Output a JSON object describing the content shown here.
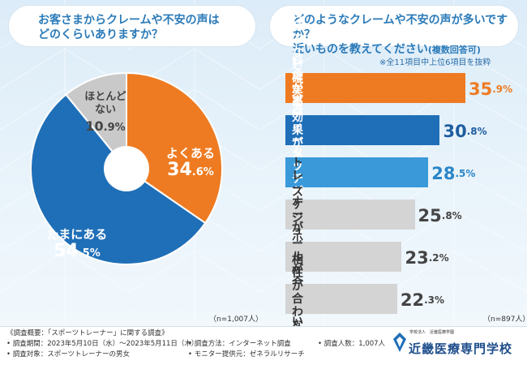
{
  "header": {
    "q1_line1": "お客さまからクレームや不安の声は",
    "q1_line2": "どのくらいありますか？",
    "q2_line1": "どのようなクレームや不安の声が多いですか？",
    "q2_line2": "近いものを教えてください",
    "q2_suffix": "(複数回答可)",
    "note": "※全11項目中上位6項目を抜粋"
  },
  "sample": {
    "left": "（n=1,007人）",
    "right": "（n=897人）"
  },
  "chart_data": [
    {
      "type": "pie",
      "slices": [
        {
          "label": "よくある",
          "value_int": "34",
          "value_dec": ".6%",
          "value": 34.6,
          "color": "#ee7b22",
          "text_color": "#ffffff"
        },
        {
          "label": "たまにある",
          "value_int": "54",
          "value_dec": ".5%",
          "value": 54.5,
          "color": "#1f6fb8",
          "text_color": "#ffffff"
        },
        {
          "label": "ほとんど\nない",
          "value_int": "10",
          "value_dec": ".9%",
          "value": 10.9,
          "color": "#c9c9c9",
          "text_color": "#444444"
        }
      ]
    },
    {
      "type": "bar",
      "orientation": "horizontal",
      "xlim": [
        0,
        35.9
      ],
      "bars": [
        {
          "label": "料金が高い",
          "value": 35.9,
          "value_int": "35",
          "value_dec": ".9%",
          "color": "#ee7b22",
          "text_color": "#ffffff",
          "value_color": "#ee7b22"
        },
        {
          "label": "痩せるなど確実な効果が\nあるのか気になる",
          "value": 30.8,
          "value_int": "30",
          "value_dec": ".8%",
          "color": "#1f6fb8",
          "text_color": "#ffffff",
          "value_color": "#1f5ea0"
        },
        {
          "label": "ボディータッチが気になる",
          "value": 28.5,
          "value_int": "28",
          "value_dec": ".5%",
          "color": "#3a9ad9",
          "text_color": "#ffffff",
          "value_color": "#2b86c8"
        },
        {
          "label": "トレーナーが少ない",
          "value": 25.8,
          "value_int": "25",
          "value_dec": ".8%",
          "color": "#d4d4d4",
          "text_color": "#333333",
          "value_color": "#444444"
        },
        {
          "label": "スケジュールが合わない",
          "value": 23.2,
          "value_int": "23",
          "value_dec": ".2%",
          "color": "#d4d4d4",
          "text_color": "#333333",
          "value_color": "#444444"
        },
        {
          "label": "相性が合わない",
          "value": 22.3,
          "value_int": "22",
          "value_dec": ".3%",
          "color": "#d4d4d4",
          "text_color": "#333333",
          "value_color": "#444444"
        }
      ]
    }
  ],
  "footer": {
    "overview": "《調査概要：「スポーツトレーナー」に関する調査》",
    "period": "• 調査期間：2023年5月10日（水）～2023年5月11日（木）",
    "method": "• 調査方法：インターネット調査",
    "count": "• 調査人数：1,007人",
    "target": "• 調査対象：スポーツトレーナーの男女",
    "provider": "• モニター提供元：ゼネラルリサーチ",
    "logo_small": "学校法人　近畿医療学園",
    "logo_name": "近畿医療専門学校"
  }
}
